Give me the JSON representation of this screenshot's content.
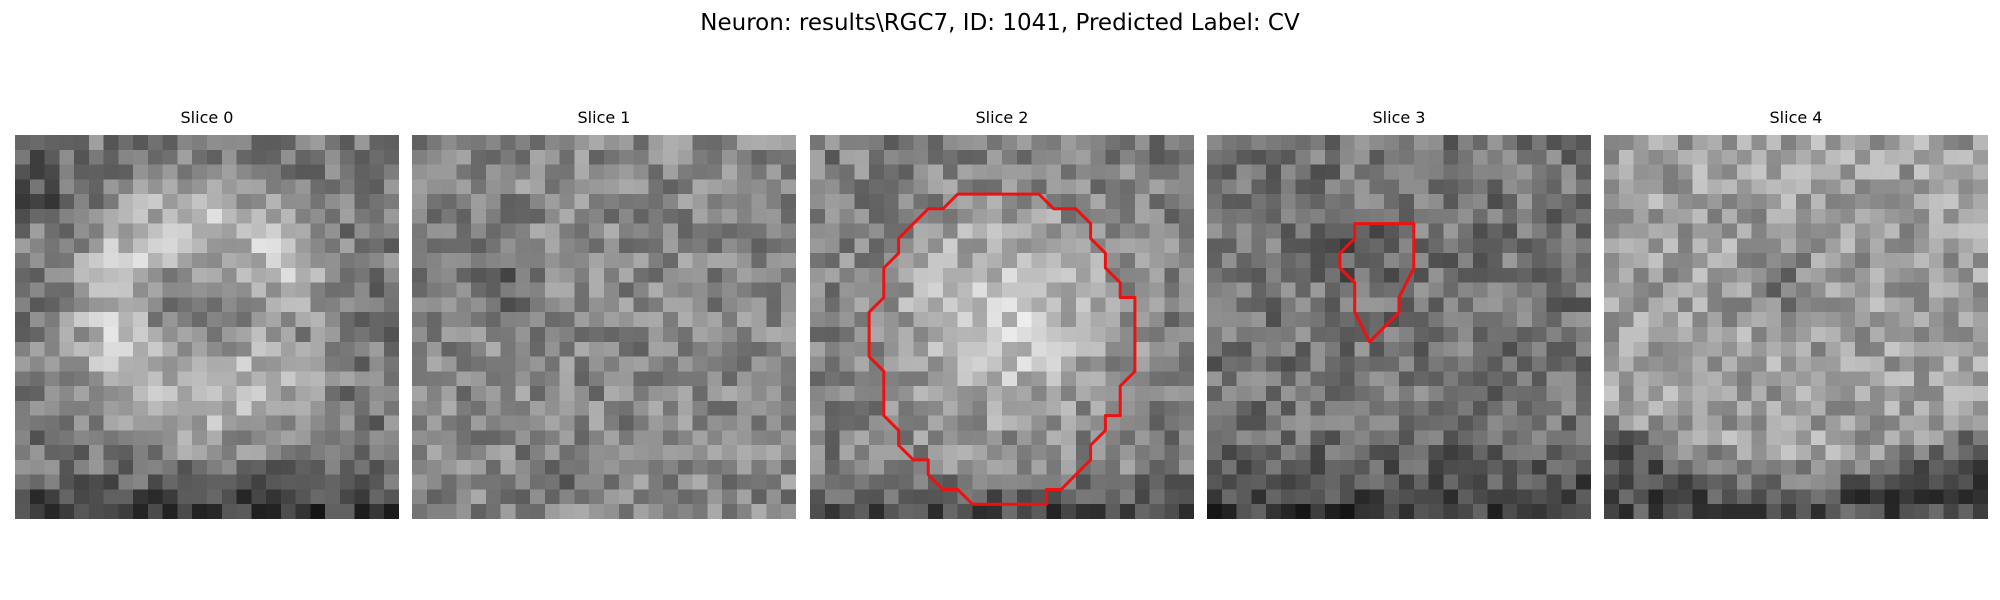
{
  "figure": {
    "title": "Neuron: results\\RGC7, ID: 1041, Predicted Label: CV",
    "contour_color": "#ee1111"
  },
  "panels": [
    {
      "title": "Slice 0",
      "has_contour": false
    },
    {
      "title": "Slice 1",
      "has_contour": false
    },
    {
      "title": "Slice 2",
      "has_contour": true
    },
    {
      "title": "Slice 3",
      "has_contour": true
    },
    {
      "title": "Slice 4",
      "has_contour": false
    }
  ]
}
